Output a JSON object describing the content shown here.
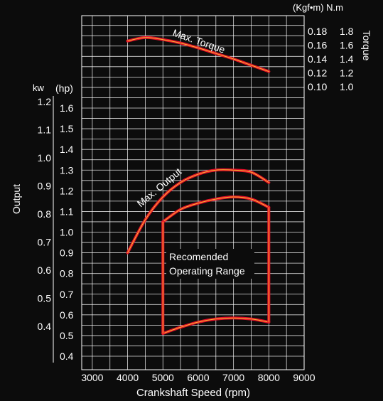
{
  "chart_data": {
    "type": "line",
    "xlabel": "Crankshaft Speed (rpm)",
    "x_ticks": [
      3000,
      4000,
      5000,
      6000,
      7000,
      8000,
      9000
    ],
    "xlim": [
      2700,
      9000
    ],
    "ylabel": "Output",
    "kw_label": "kw",
    "hp_label": "(hp)",
    "kw_ticks": [
      "1.2",
      "1.1",
      "1.0",
      "0.9",
      "0.8",
      "0.7",
      "0.6",
      "0.5",
      "0.4"
    ],
    "hp_ticks": [
      "1.6",
      "1.5",
      "1.4",
      "1.3",
      "1.2",
      "1.1",
      "1.0",
      "0.9",
      "0.8",
      "0.7",
      "0.6",
      "0.5",
      "0.4"
    ],
    "hp_range": [
      0.35,
      1.7
    ],
    "torque_label": "Torque",
    "torque_unit_label": "(Kgf•m) N.m",
    "torque_kgf_ticks": [
      "0.18",
      "0.16",
      "0.14",
      "0.12",
      "0.10"
    ],
    "torque_nm_ticks": [
      "1.8",
      "1.6",
      "1.4",
      "1.2",
      "1.0"
    ],
    "torque_range": [
      0.09,
      0.19
    ],
    "series": [
      {
        "name": "Max. Torque",
        "axis": "torque",
        "x": [
          4000,
          4500,
          5000,
          5500,
          6000,
          6500,
          7000,
          7500,
          8000
        ],
        "y": [
          0.166,
          0.171,
          0.168,
          0.163,
          0.156,
          0.148,
          0.14,
          0.131,
          0.122
        ]
      },
      {
        "name": "Max. Output",
        "axis": "hp",
        "x": [
          4000,
          4500,
          5000,
          5500,
          6000,
          6500,
          7000,
          7500,
          8000
        ],
        "y": [
          0.9,
          1.06,
          1.17,
          1.24,
          1.28,
          1.3,
          1.3,
          1.29,
          1.24
        ]
      }
    ],
    "region": {
      "name": "Recomended Operating Range",
      "label_lines": [
        "Recomended",
        "Operating Range"
      ],
      "x": [
        5000,
        5500,
        6000,
        6500,
        7000,
        7500,
        8000
      ],
      "upper": [
        1.05,
        1.11,
        1.14,
        1.16,
        1.17,
        1.16,
        1.12
      ],
      "lower": [
        0.51,
        0.54,
        0.565,
        0.58,
        0.585,
        0.58,
        0.565
      ]
    },
    "colors": {
      "curve_outer": "#e8102a",
      "curve_inner": "#f2c230",
      "grid": "#ffffff",
      "background": "#0c0c0c"
    }
  }
}
